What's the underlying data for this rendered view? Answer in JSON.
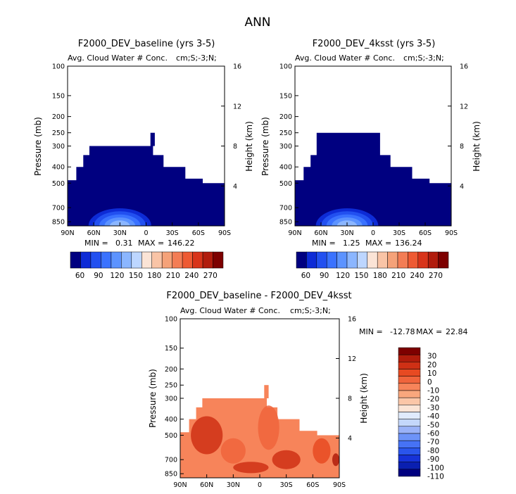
{
  "figure": {
    "title": "ANN"
  },
  "palette": {
    "abs": [
      "#000080",
      "#0d2bd6",
      "#2250f0",
      "#3a72ff",
      "#5c93ff",
      "#8bb6ff",
      "#bdd6ff",
      "#fbe4d6",
      "#f9c4a6",
      "#f5a279",
      "#f37d55",
      "#ee5a33",
      "#d8341a",
      "#b11c0d",
      "#7d0000"
    ],
    "diff": [
      "#000080",
      "#0a1fb0",
      "#1632d8",
      "#2a55ec",
      "#4672f5",
      "#6d93f8",
      "#9ab2f8",
      "#c4d7fb",
      "#e0ebfd",
      "#fbe4d6",
      "#fbc6a8",
      "#f9a77d",
      "#f7845a",
      "#f0643c",
      "#e74a22",
      "#cf3015",
      "#b01c0c",
      "#7d0000"
    ]
  },
  "charts": [
    {
      "type": "heatmap",
      "title": "F2000_DEV_baseline (yrs 3-5)",
      "subtitle": "Avg. Cloud Water # Conc.",
      "units_label": "cm;S;-3;N;",
      "ylabel": "Pressure (mb)",
      "ylabel_right": "Height (km)",
      "x_ticks": [
        "90N",
        "60N",
        "30N",
        "0",
        "30S",
        "60S",
        "90S"
      ],
      "y_ticks": [
        "100",
        "150",
        "200",
        "250",
        "300",
        "400",
        "500",
        "700",
        "850"
      ],
      "height_ticks": [
        "16",
        "12",
        "8",
        "4"
      ],
      "stats": {
        "min_label": "MIN =",
        "min": "0.31",
        "max_label": "MAX =",
        "max": "146.22"
      },
      "colorbar_labels": [
        "60",
        "90",
        "120",
        "150",
        "180",
        "210",
        "240",
        "270"
      ],
      "field": {
        "max_value": 146.22,
        "peak_lat": 30,
        "peak_pressure": 850,
        "top_pressure_mb": 300
      }
    },
    {
      "type": "heatmap",
      "title": "F2000_DEV_4ksst (yrs 3-5)",
      "subtitle": "Avg. Cloud Water # Conc.",
      "units_label": "cm;S;-3;N;",
      "ylabel": "Pressure (mb)",
      "ylabel_right": "Height (km)",
      "x_ticks": [
        "90N",
        "60N",
        "30N",
        "0",
        "30S",
        "60S",
        "90S"
      ],
      "y_ticks": [
        "100",
        "150",
        "200",
        "250",
        "300",
        "400",
        "500",
        "700",
        "850"
      ],
      "height_ticks": [
        "16",
        "12",
        "8",
        "4"
      ],
      "stats": {
        "min_label": "MIN =",
        "min": "1.25",
        "max_label": "MAX =",
        "max": "136.24"
      },
      "colorbar_labels": [
        "60",
        "90",
        "120",
        "150",
        "180",
        "210",
        "240",
        "270"
      ],
      "field": {
        "max_value": 136.24,
        "peak_lat": 30,
        "peak_pressure": 850,
        "top_pressure_mb": 250
      }
    },
    {
      "type": "heatmap",
      "title": "F2000_DEV_baseline - F2000_DEV_4ksst",
      "subtitle": "Avg. Cloud Water # Conc.",
      "units_label": "cm;S;-3;N;",
      "ylabel": "Pressure (mb)",
      "ylabel_right": "Height (km)",
      "x_ticks": [
        "90N",
        "60N",
        "30N",
        "0",
        "30S",
        "60S",
        "90S"
      ],
      "y_ticks": [
        "100",
        "150",
        "200",
        "250",
        "300",
        "400",
        "500",
        "700",
        "850"
      ],
      "height_ticks": [
        "16",
        "12",
        "8",
        "4"
      ],
      "stats": {
        "min_label": "MIN =",
        "min": "-12.78",
        "max_label": "MAX =",
        "max": "22.84"
      },
      "colorbar_labels": [
        "30",
        "20",
        "10",
        "0",
        "-10",
        "-20",
        "-30",
        "-40",
        "-50",
        "-60",
        "-70",
        "-80",
        "-90",
        "-100",
        "-110"
      ],
      "field": {
        "min_value": -12.78,
        "max_value": 22.84,
        "top_pressure_mb": 300
      }
    }
  ]
}
